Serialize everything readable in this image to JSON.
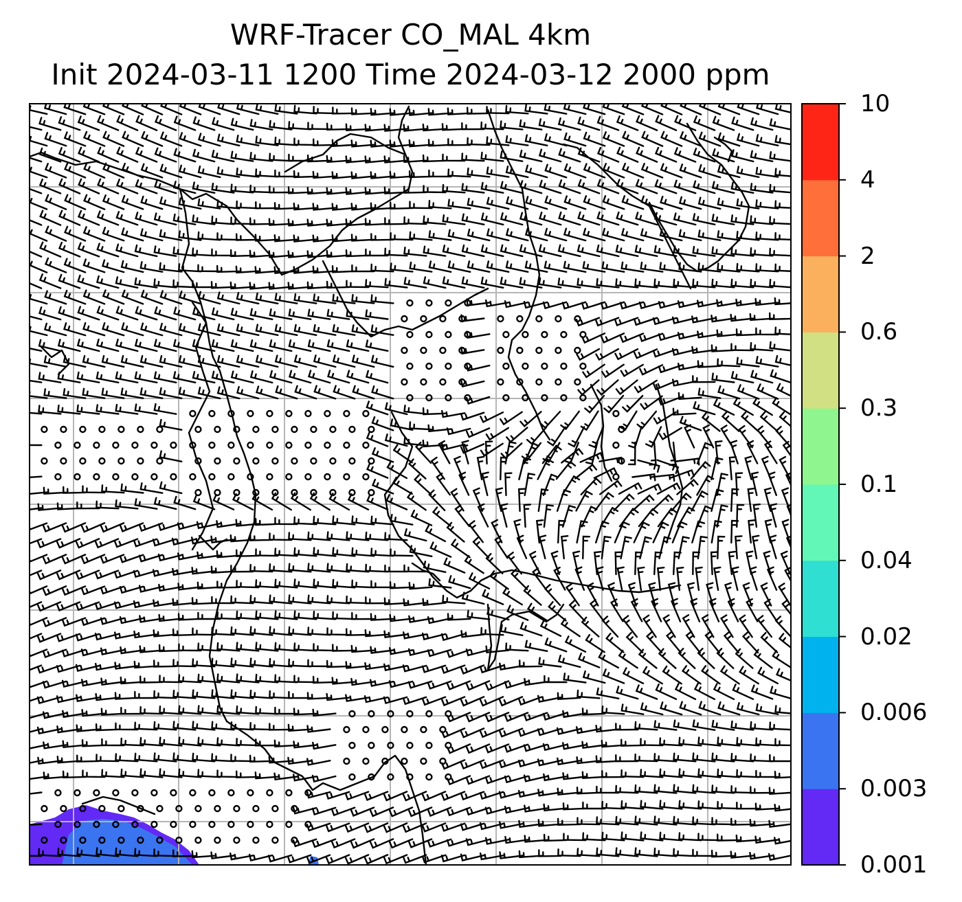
{
  "title_line1": "WRF-Tracer CO_MAL 4km",
  "title_line2": "Init 2024-03-11 1200 Time 2024-03-12 2000 ppm",
  "colorbar": {
    "levels": [
      "0.001",
      "0.003",
      "0.006",
      "0.02",
      "0.04",
      "0.1",
      "0.3",
      "0.6",
      "2",
      "4",
      "10"
    ],
    "colors": [
      "#6329f5",
      "#3b74f0",
      "#00b2ed",
      "#2edfd2",
      "#62f7b6",
      "#8ff58f",
      "#d1e082",
      "#fbb05e",
      "#fe6f39",
      "#ff2516"
    ]
  },
  "map": {
    "coastline_color": "#000000",
    "gridline_color": "#b5b5b5",
    "barb_color": "#000000",
    "tracer_region_colors": [
      "#6329f5",
      "#3b74f0"
    ]
  }
}
